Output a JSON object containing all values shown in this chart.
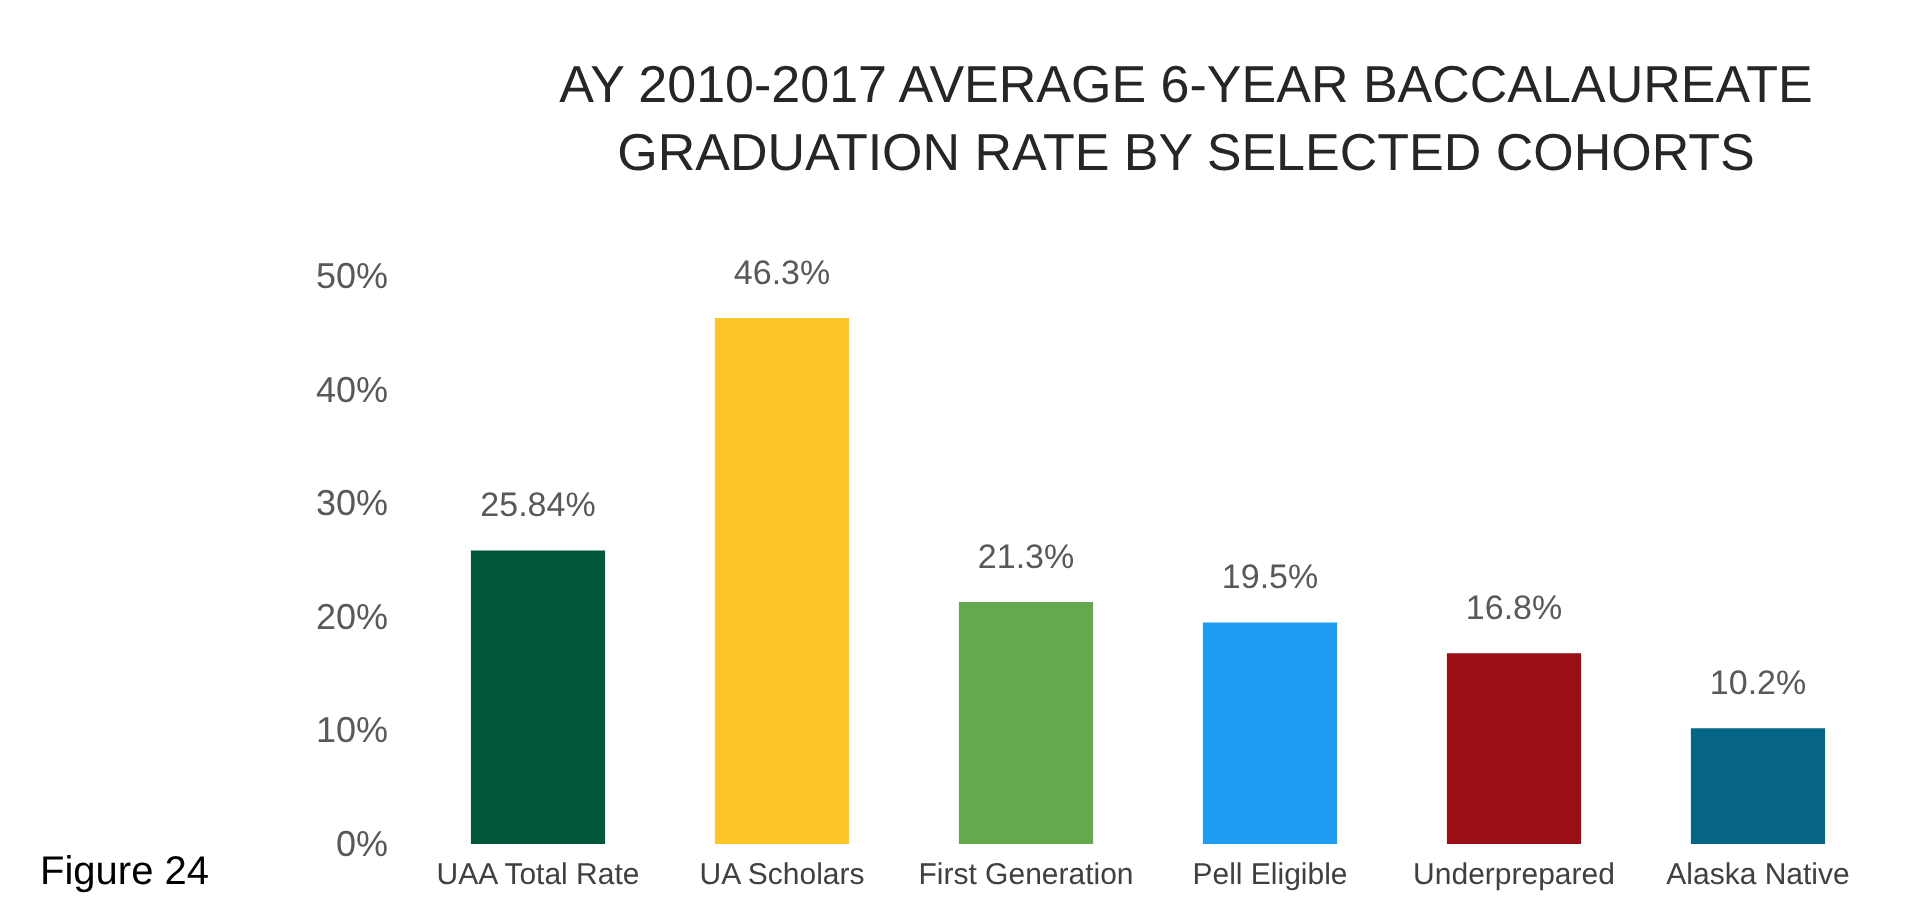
{
  "chart_data": {
    "type": "bar",
    "title": "AY 2010-2017 AVERAGE 6-YEAR BACCALAUREATE\nGRADUATION RATE BY SELECTED COHORTS",
    "categories": [
      "UAA Total Rate",
      "UA Scholars",
      "First Generation",
      "Pell Eligible",
      "Underprepared",
      "Alaska Native"
    ],
    "values": [
      25.84,
      46.3,
      21.3,
      19.5,
      16.8,
      10.2
    ],
    "colors": [
      "#02563a",
      "#fcc52a",
      "#66a84e",
      "#1e9bf3",
      "#9a0f15",
      "#066585"
    ],
    "value_labels": [
      "25.84%",
      "46.3%",
      "21.3%",
      "19.5%",
      "16.8%",
      "10.2%"
    ],
    "ylim": [
      0,
      50
    ],
    "yticks": [
      {
        "value": 0,
        "label": "0%"
      },
      {
        "value": 10,
        "label": "10%"
      },
      {
        "value": 20,
        "label": "20%"
      },
      {
        "value": 30,
        "label": "30%"
      },
      {
        "value": 40,
        "label": "40%"
      },
      {
        "value": 50,
        "label": "50%"
      }
    ],
    "annotations": [
      "Figure 24"
    ]
  }
}
